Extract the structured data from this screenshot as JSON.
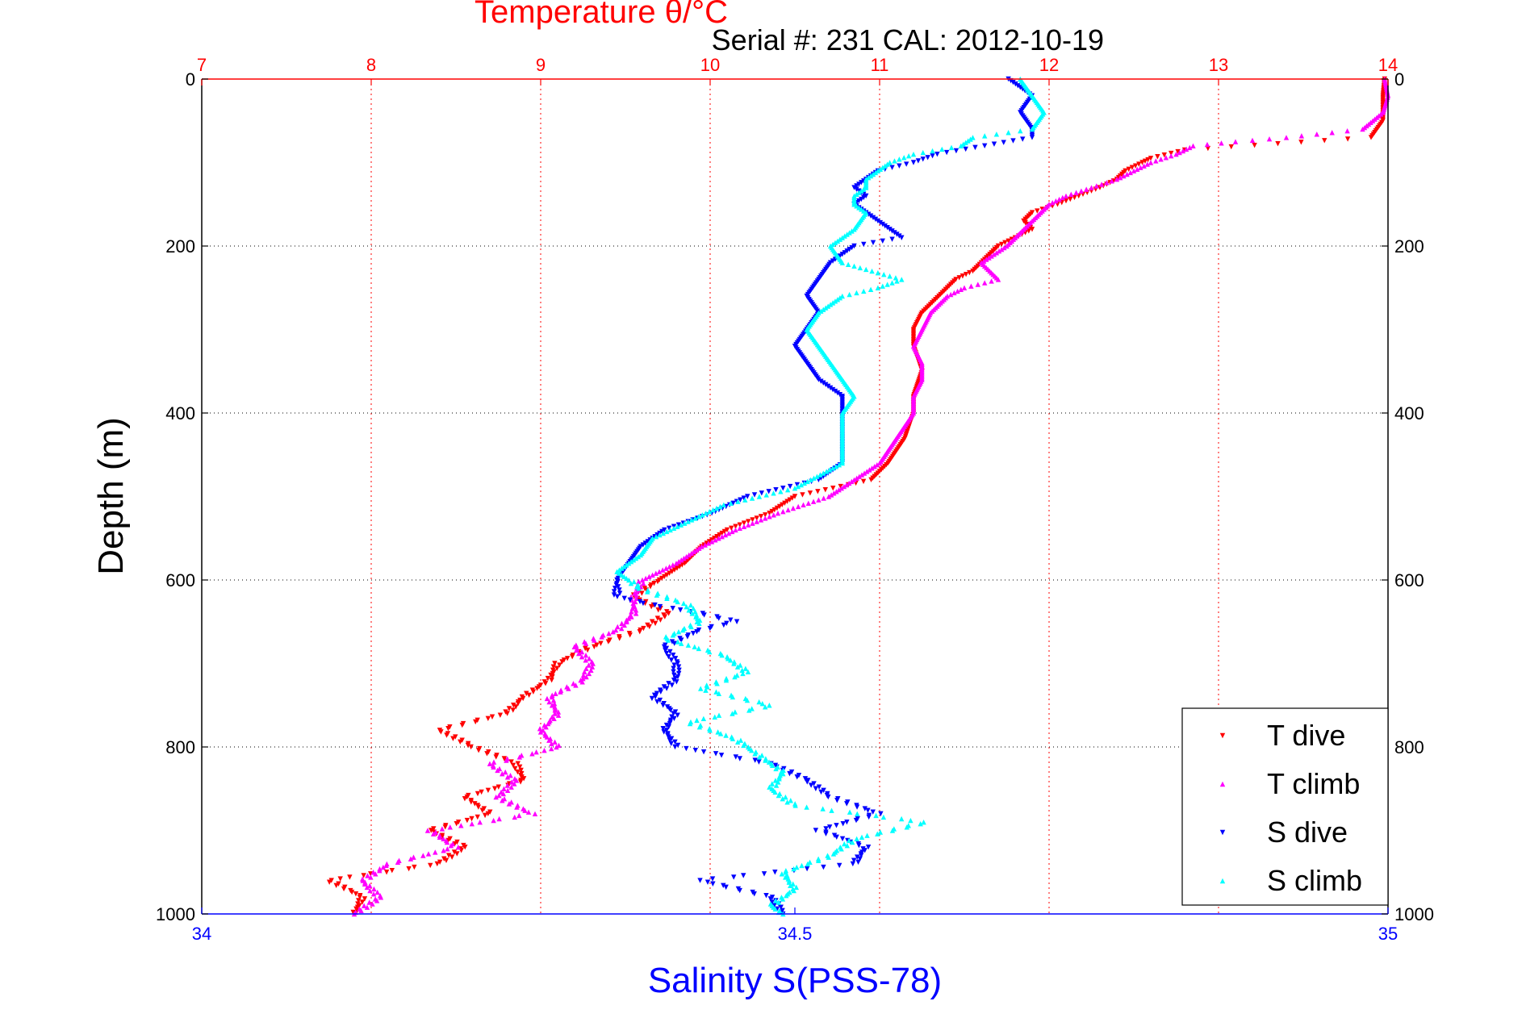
{
  "chart_data": {
    "type": "scatter",
    "title": "Temperature θ/°C",
    "subtitle": "Serial #: 231  CAL: 2012-10-19",
    "xlabel_top": "Temperature θ/°C",
    "xlabel_bottom": "Salinity S(PSS-78)",
    "ylabel": "Depth (m)",
    "temperature_axis": {
      "range": [
        7,
        14
      ],
      "ticks": [
        "7",
        "8",
        "9",
        "10",
        "11",
        "12",
        "13",
        "14"
      ]
    },
    "salinity_axis": {
      "range": [
        34,
        35
      ],
      "ticks": [
        "34",
        "34.5",
        "35"
      ]
    },
    "depth_axis": {
      "range": [
        0,
        1000
      ],
      "reversed": true,
      "ticks": [
        "0",
        "200",
        "400",
        "600",
        "800",
        "1000"
      ]
    },
    "grid": "on",
    "legend_position": "bottom-right",
    "colors": {
      "T dive": "#ff0000",
      "T climb": "#ff00ff",
      "S dive": "#0000ff",
      "S climb": "#00ffff"
    },
    "series": [
      {
        "name": "T dive",
        "axis": "temperature",
        "marker": "triangle-down",
        "depth": [
          0,
          20,
          50,
          70,
          85,
          95,
          100,
          110,
          120,
          130,
          150,
          160,
          170,
          180,
          190,
          200,
          210,
          230,
          240,
          250,
          260,
          280,
          300,
          320,
          350,
          380,
          400,
          430,
          460,
          480,
          500,
          520,
          540,
          560,
          580,
          600,
          620,
          640,
          660,
          680,
          700,
          720,
          740,
          760,
          780,
          800,
          820,
          840,
          860,
          880,
          900,
          920,
          940,
          960,
          980,
          1000
        ],
        "value": [
          13.98,
          13.97,
          13.97,
          13.9,
          12.8,
          12.6,
          12.55,
          12.45,
          12.4,
          12.3,
          12.05,
          11.9,
          11.85,
          11.9,
          11.8,
          11.7,
          11.65,
          11.55,
          11.45,
          11.4,
          11.35,
          11.25,
          11.2,
          11.2,
          11.25,
          11.2,
          11.2,
          11.15,
          11.05,
          10.95,
          10.5,
          10.35,
          10.1,
          9.95,
          9.85,
          9.7,
          9.55,
          9.75,
          9.6,
          9.3,
          9.1,
          9.05,
          8.9,
          8.8,
          8.4,
          8.6,
          8.85,
          8.9,
          8.55,
          8.7,
          8.35,
          8.55,
          8.4,
          7.75,
          7.95,
          7.9
        ]
      },
      {
        "name": "T climb",
        "axis": "temperature",
        "marker": "triangle-up",
        "depth": [
          0,
          20,
          40,
          60,
          70,
          75,
          80,
          90,
          100,
          110,
          120,
          130,
          140,
          150,
          170,
          190,
          200,
          220,
          230,
          240,
          250,
          260,
          280,
          300,
          320,
          340,
          360,
          380,
          400,
          430,
          460,
          480,
          500,
          520,
          540,
          560,
          580,
          600,
          620,
          640,
          660,
          680,
          700,
          720,
          740,
          760,
          780,
          800,
          820,
          840,
          860,
          880,
          900,
          920,
          940,
          960,
          980,
          1000
        ],
        "value": [
          13.98,
          14.0,
          13.97,
          13.85,
          13.4,
          13.1,
          12.85,
          12.75,
          12.6,
          12.5,
          12.4,
          12.25,
          12.1,
          12.0,
          11.9,
          11.8,
          11.75,
          11.6,
          11.65,
          11.7,
          11.5,
          11.4,
          11.3,
          11.25,
          11.2,
          11.25,
          11.25,
          11.2,
          11.2,
          11.1,
          11.0,
          10.85,
          10.7,
          10.4,
          10.15,
          9.95,
          9.8,
          9.6,
          9.55,
          9.55,
          9.45,
          9.2,
          9.3,
          9.25,
          9.05,
          9.1,
          9.0,
          9.1,
          8.7,
          8.85,
          8.75,
          8.95,
          8.35,
          8.5,
          8.1,
          7.95,
          8.05,
          7.9
        ]
      },
      {
        "name": "S dive",
        "axis": "salinity",
        "marker": "triangle-down",
        "depth": [
          0,
          20,
          40,
          60,
          70,
          80,
          90,
          100,
          110,
          120,
          130,
          140,
          150,
          160,
          180,
          190,
          200,
          220,
          240,
          260,
          280,
          300,
          320,
          340,
          360,
          380,
          400,
          430,
          460,
          480,
          500,
          520,
          540,
          560,
          580,
          600,
          620,
          630,
          640,
          650,
          660,
          680,
          700,
          720,
          740,
          760,
          780,
          800,
          820,
          840,
          860,
          880,
          900,
          920,
          940,
          960,
          980,
          1000
        ],
        "value": [
          34.68,
          34.7,
          34.69,
          34.7,
          34.7,
          34.66,
          34.62,
          34.6,
          34.57,
          34.56,
          34.55,
          34.56,
          34.55,
          34.56,
          34.58,
          34.59,
          34.55,
          34.53,
          34.52,
          34.51,
          34.52,
          34.51,
          34.5,
          34.51,
          34.52,
          34.54,
          34.54,
          34.54,
          34.54,
          34.52,
          34.46,
          34.43,
          34.39,
          34.37,
          34.36,
          34.35,
          34.35,
          34.38,
          34.42,
          34.45,
          34.42,
          34.39,
          34.4,
          34.4,
          34.38,
          34.4,
          34.39,
          34.4,
          34.48,
          34.51,
          34.53,
          34.57,
          34.52,
          34.56,
          34.55,
          34.42,
          34.48,
          34.49
        ]
      },
      {
        "name": "S climb",
        "axis": "salinity",
        "marker": "triangle-up",
        "depth": [
          0,
          20,
          40,
          60,
          70,
          80,
          90,
          100,
          110,
          120,
          130,
          140,
          150,
          160,
          180,
          200,
          220,
          240,
          250,
          260,
          280,
          300,
          320,
          340,
          360,
          380,
          400,
          430,
          460,
          490,
          510,
          530,
          550,
          570,
          590,
          610,
          630,
          650,
          670,
          690,
          710,
          730,
          750,
          770,
          790,
          810,
          830,
          850,
          870,
          890,
          910,
          930,
          950,
          970,
          990,
          1000
        ],
        "value": [
          34.69,
          34.7,
          34.71,
          34.7,
          34.65,
          34.64,
          34.6,
          34.58,
          34.57,
          34.56,
          34.56,
          34.55,
          34.55,
          34.56,
          34.55,
          34.53,
          34.54,
          34.59,
          34.57,
          34.54,
          34.52,
          34.51,
          34.52,
          34.53,
          34.54,
          34.55,
          34.54,
          34.54,
          34.54,
          34.5,
          34.44,
          34.41,
          34.38,
          34.37,
          34.35,
          34.37,
          34.41,
          34.42,
          34.39,
          34.44,
          34.46,
          34.42,
          34.48,
          34.41,
          34.45,
          34.47,
          34.49,
          34.48,
          34.5,
          34.61,
          34.55,
          34.53,
          34.49,
          34.5,
          34.48,
          34.49
        ]
      }
    ],
    "legend": [
      "T dive",
      "T climb",
      "S dive",
      "S climb"
    ]
  }
}
